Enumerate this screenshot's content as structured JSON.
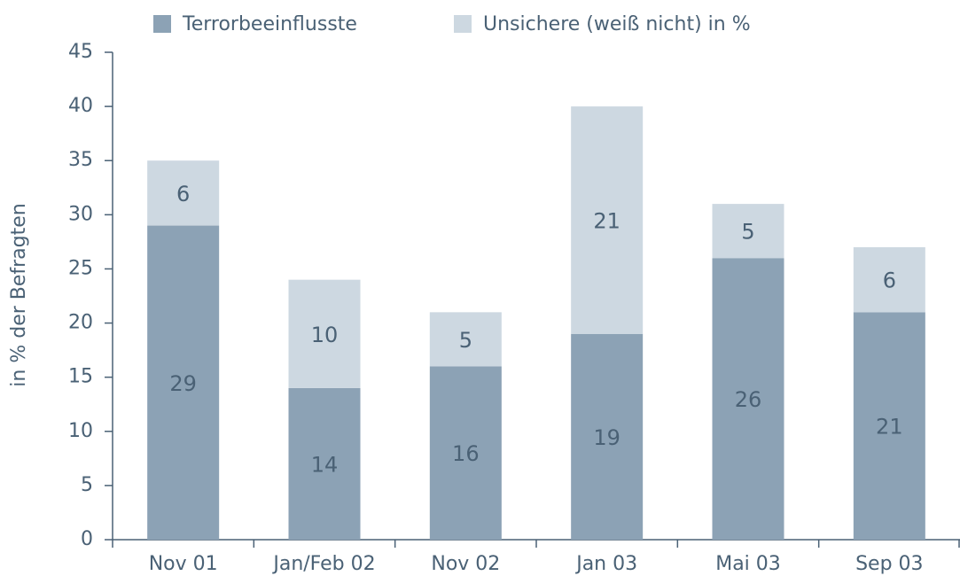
{
  "chart_data": {
    "type": "stacked_bar",
    "ylabel": "in % der Befragten",
    "categories": [
      "Nov 01",
      "Jan/Feb 02",
      "Nov 02",
      "Jan 03",
      "Mai 03",
      "Sep 03"
    ],
    "series": [
      {
        "name": "Terrorbeeinflusste",
        "color": "#8ca2b5",
        "values": [
          29,
          14,
          16,
          19,
          26,
          21
        ]
      },
      {
        "name": "Unsichere (weiß nicht) in %",
        "color": "#cdd8e1",
        "values": [
          6,
          10,
          5,
          21,
          5,
          6
        ]
      }
    ],
    "ylim": [
      0,
      45
    ],
    "yticks": [
      0,
      5,
      10,
      15,
      20,
      25,
      30,
      35,
      40,
      45
    ],
    "grid": false,
    "legend": "top"
  }
}
